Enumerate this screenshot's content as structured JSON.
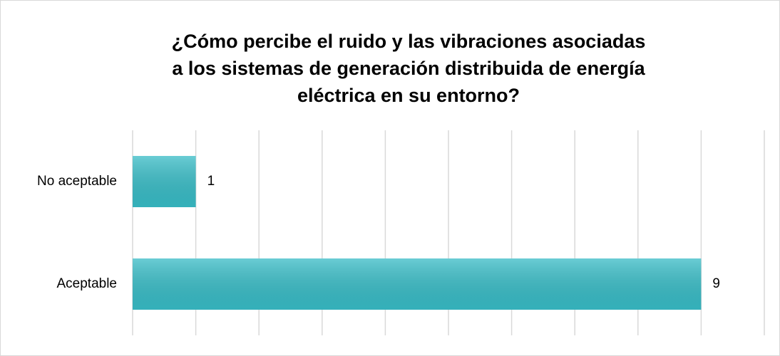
{
  "chart_data": {
    "type": "barh",
    "title": "¿Cómo percibe  el ruido y las vibraciones asociadas\na los sistemas de generación distribuida de energía\neléctrica en su entorno?",
    "categories": [
      "No aceptable",
      "Aceptable"
    ],
    "values": [
      1,
      9
    ],
    "color": "#38bcc6",
    "xlim": [
      0,
      10
    ],
    "xticks": [
      0,
      1,
      2,
      3,
      4,
      5,
      6,
      7,
      8,
      9,
      10
    ],
    "grid": true
  }
}
